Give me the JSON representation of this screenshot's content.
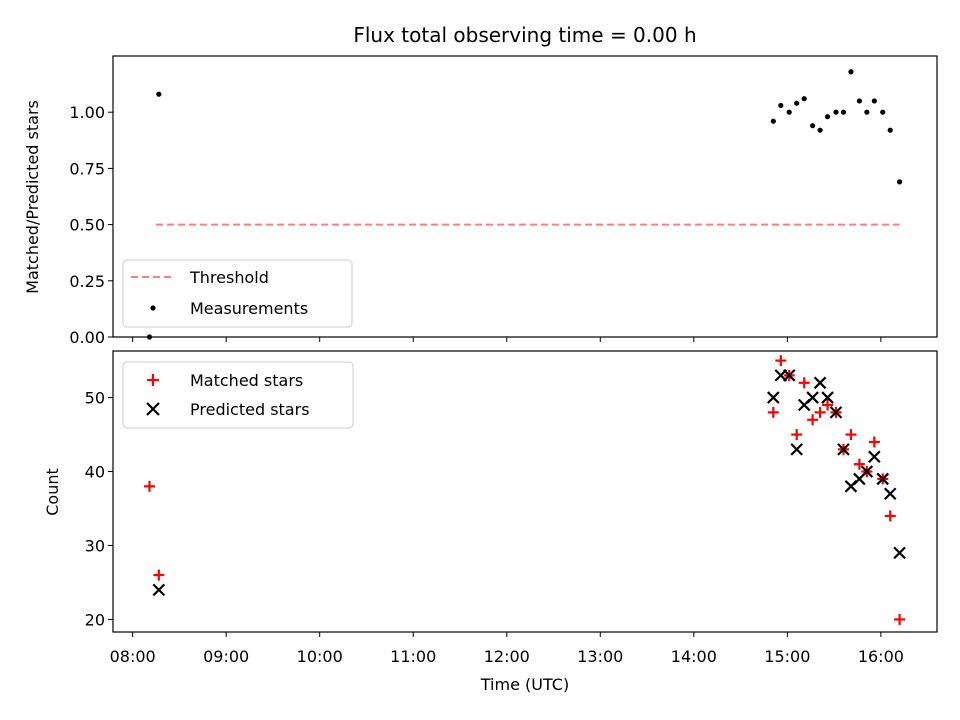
{
  "title": "Flux total observing time = 0.00 h",
  "x_axis": {
    "label": "Time (UTC)",
    "ticks": [
      8,
      9,
      10,
      11,
      12,
      13,
      14,
      15,
      16
    ],
    "tick_labels": [
      "08:00",
      "09:00",
      "10:00",
      "11:00",
      "12:00",
      "13:00",
      "14:00",
      "15:00",
      "16:00"
    ],
    "range": [
      7.79,
      16.6
    ]
  },
  "chart_data": [
    {
      "type": "scatter",
      "ylabel": "Matched/Predicted stars",
      "ylim": [
        0,
        1.25
      ],
      "yticks": [
        0.0,
        0.25,
        0.5,
        0.75,
        1.0
      ],
      "ytick_labels": [
        "0.00",
        "0.25",
        "0.50",
        "0.75",
        "1.00"
      ],
      "threshold": {
        "name": "Threshold",
        "value": 0.5,
        "x": [
          8.25,
          16.2
        ],
        "color": "#ff7f7f"
      },
      "series": [
        {
          "name": "Measurements",
          "color": "#000000",
          "points": [
            [
              8.18,
              0.0
            ],
            [
              8.28,
              1.08
            ],
            [
              14.85,
              0.96
            ],
            [
              14.93,
              1.03
            ],
            [
              15.02,
              1.0
            ],
            [
              15.1,
              1.04
            ],
            [
              15.18,
              1.06
            ],
            [
              15.27,
              0.94
            ],
            [
              15.35,
              0.92
            ],
            [
              15.43,
              0.98
            ],
            [
              15.52,
              1.0
            ],
            [
              15.6,
              1.0
            ],
            [
              15.68,
              1.18
            ],
            [
              15.77,
              1.05
            ],
            [
              15.85,
              1.0
            ],
            [
              15.93,
              1.05
            ],
            [
              16.02,
              1.0
            ],
            [
              16.1,
              0.92
            ],
            [
              16.2,
              0.69
            ]
          ]
        }
      ],
      "legend": [
        "Threshold",
        "Measurements"
      ],
      "legend_position": "lower-left"
    },
    {
      "type": "scatter",
      "ylabel": "Count",
      "ylim": [
        18.3,
        56.3
      ],
      "yticks": [
        20,
        30,
        40,
        50
      ],
      "ytick_labels": [
        "20",
        "30",
        "40",
        "50"
      ],
      "series": [
        {
          "name": "Matched stars",
          "marker": "plus",
          "color": "#ff0000",
          "points": [
            [
              8.18,
              38
            ],
            [
              8.28,
              26
            ],
            [
              14.85,
              48
            ],
            [
              14.93,
              55
            ],
            [
              15.02,
              53
            ],
            [
              15.1,
              45
            ],
            [
              15.18,
              52
            ],
            [
              15.27,
              47
            ],
            [
              15.35,
              48
            ],
            [
              15.43,
              49
            ],
            [
              15.52,
              48
            ],
            [
              15.6,
              43
            ],
            [
              15.68,
              45
            ],
            [
              15.77,
              41
            ],
            [
              15.85,
              40
            ],
            [
              15.93,
              44
            ],
            [
              16.02,
              39
            ],
            [
              16.1,
              34
            ],
            [
              16.2,
              20
            ]
          ]
        },
        {
          "name": "Predicted stars",
          "marker": "x",
          "color": "#000000",
          "points": [
            [
              8.28,
              24
            ],
            [
              14.85,
              50
            ],
            [
              14.93,
              53
            ],
            [
              15.02,
              53
            ],
            [
              15.1,
              43
            ],
            [
              15.18,
              49
            ],
            [
              15.27,
              50
            ],
            [
              15.35,
              52
            ],
            [
              15.43,
              50
            ],
            [
              15.52,
              48
            ],
            [
              15.6,
              43
            ],
            [
              15.68,
              38
            ],
            [
              15.77,
              39
            ],
            [
              15.85,
              40
            ],
            [
              15.93,
              42
            ],
            [
              16.02,
              39
            ],
            [
              16.1,
              37
            ],
            [
              16.2,
              29
            ]
          ]
        }
      ],
      "legend": [
        "Matched stars",
        "Predicted stars"
      ],
      "legend_position": "upper-left"
    }
  ]
}
